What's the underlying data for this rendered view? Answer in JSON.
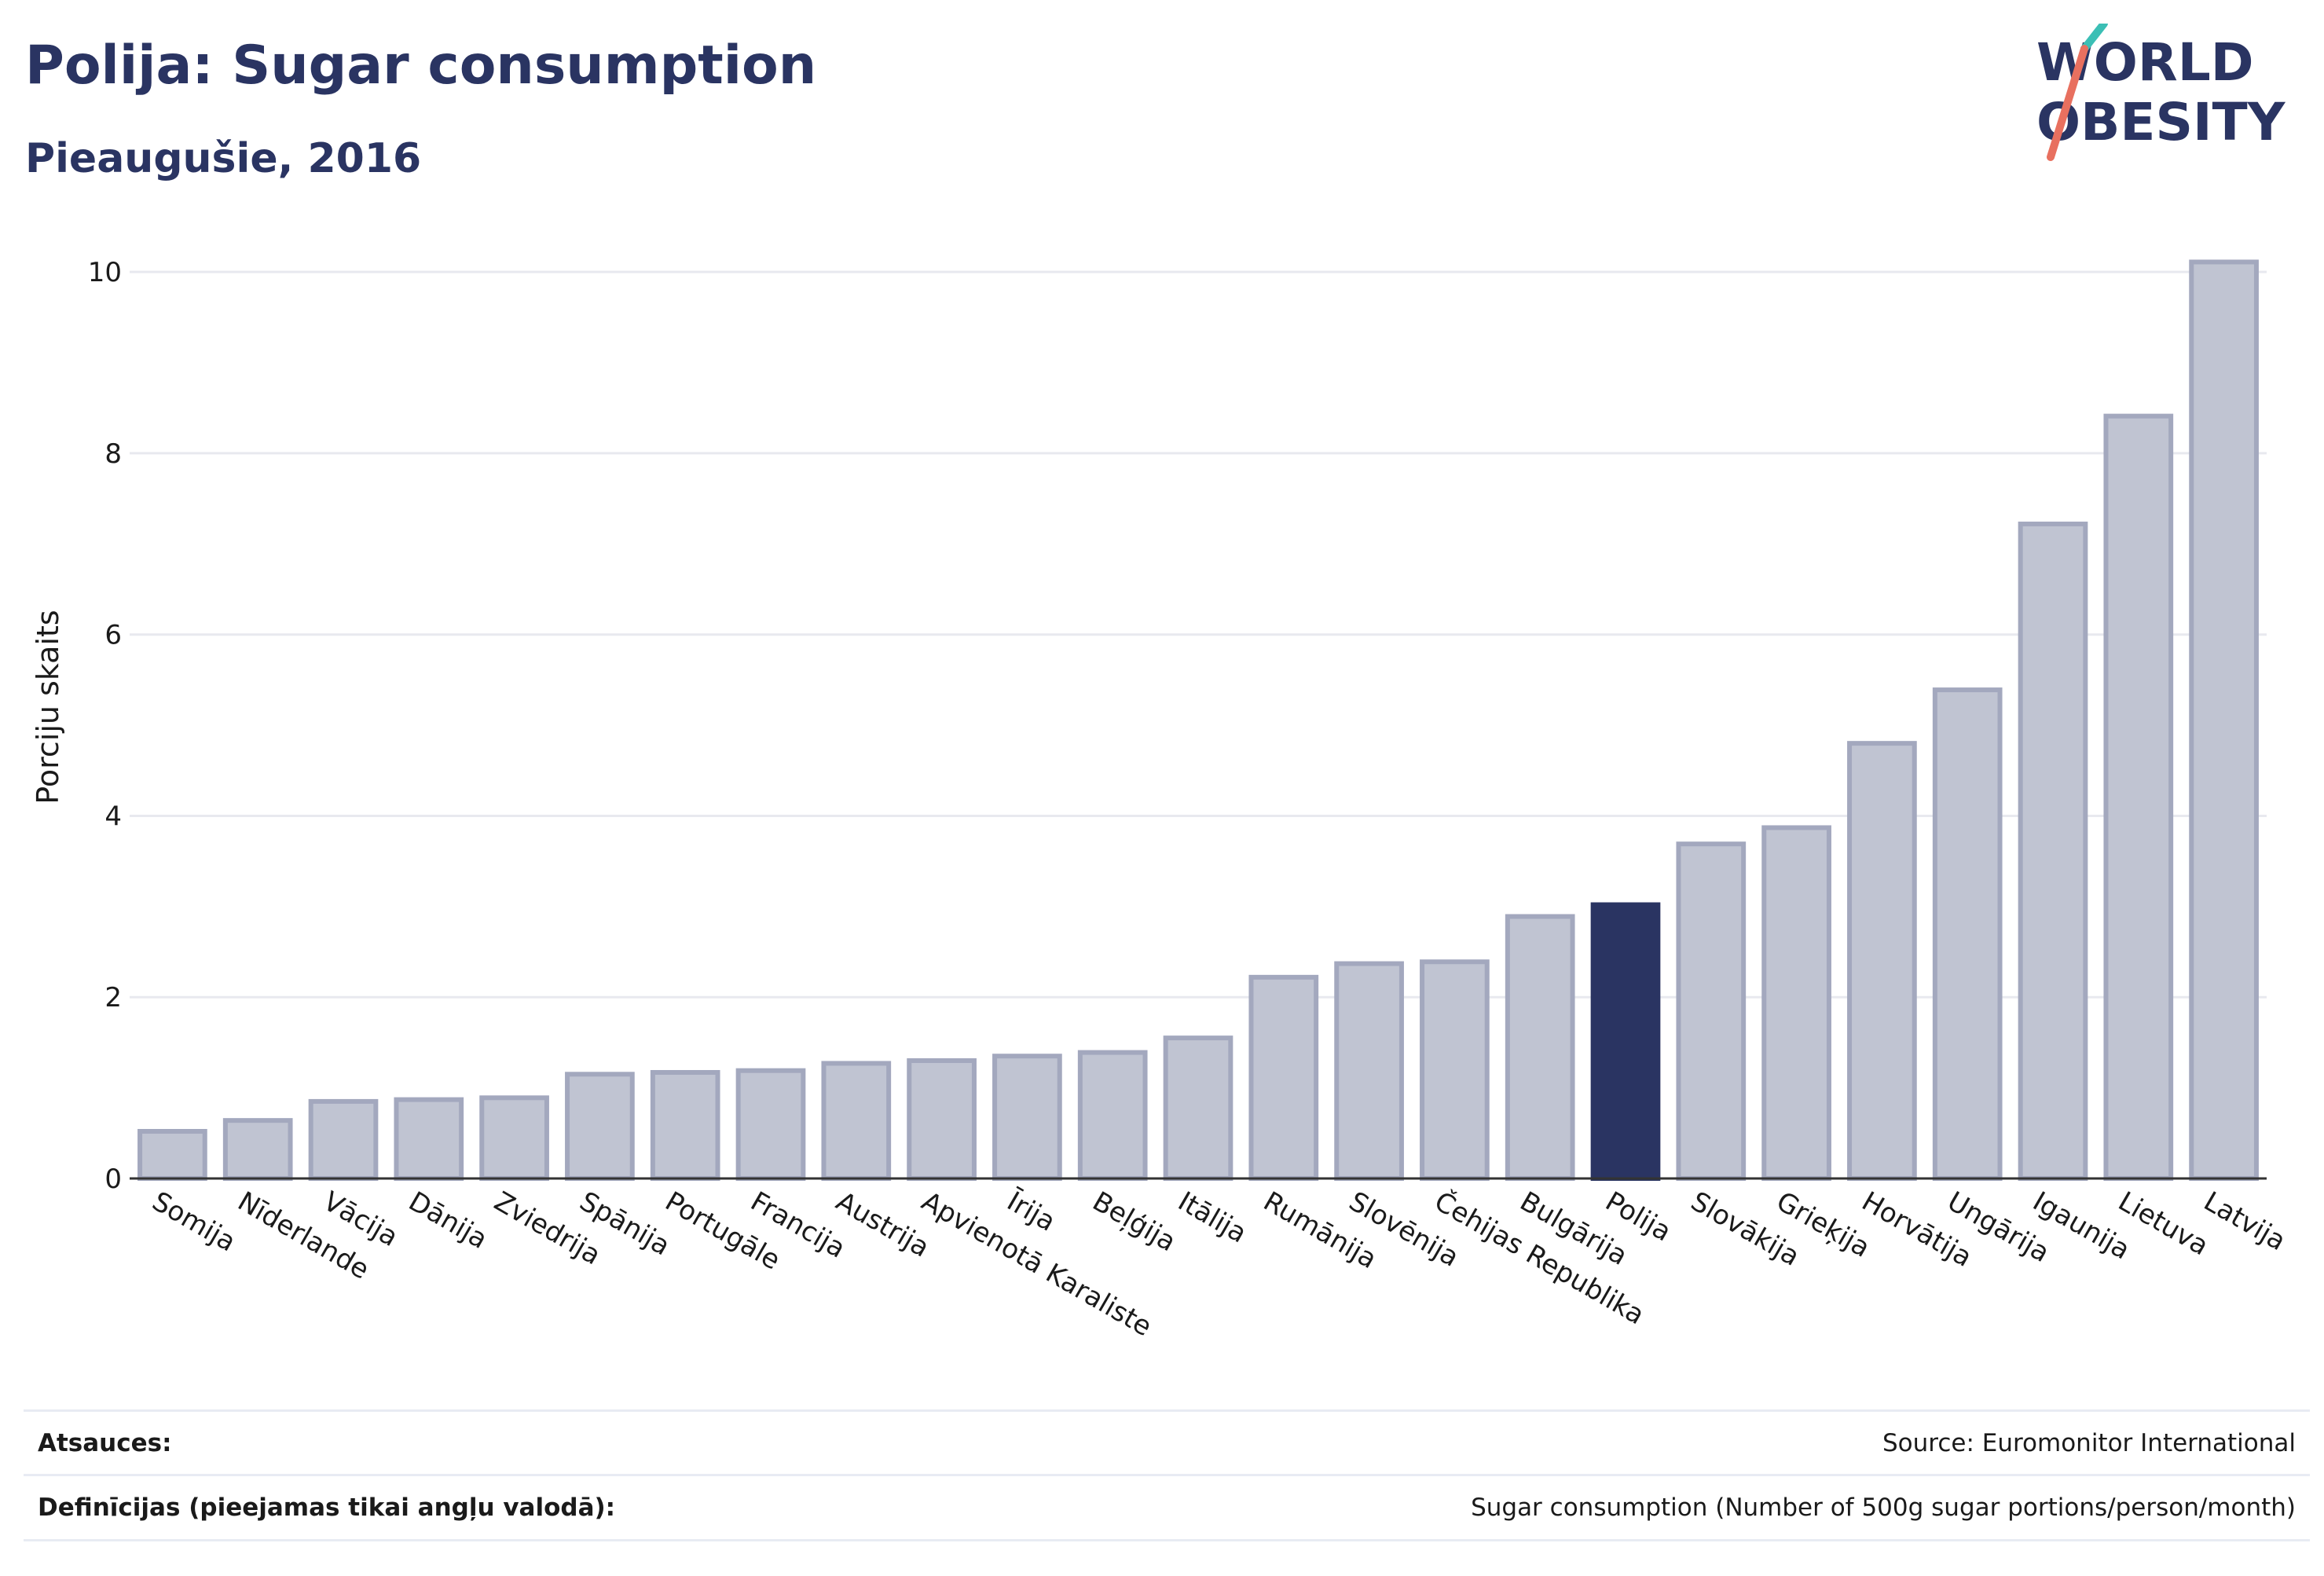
{
  "header": {
    "title": "Polija: Sugar consumption",
    "subtitle": "Pieaugušie, 2016"
  },
  "logo": {
    "line1": "WORLD",
    "line2": "OBESITY",
    "accent_teal": "#3bbfb5",
    "accent_red": "#e8705f"
  },
  "colors": {
    "bar": "#c0c4d2",
    "bar_border": "#a3a8be",
    "highlight": "#2a3462",
    "grid": "#e8e9ef",
    "axis": "#333333"
  },
  "chart_data": {
    "type": "bar",
    "ylabel": "Porciju skaits",
    "ylim": [
      0,
      10.4
    ],
    "yticks": [
      0,
      2,
      4,
      6,
      8,
      10
    ],
    "grid": true,
    "highlight": "Polija",
    "categories": [
      "Somija",
      "Nīderlande",
      "Vācija",
      "Dānija",
      "Zviedrija",
      "Spānija",
      "Portugāle",
      "Francija",
      "Austrija",
      "Apvienotā Karaliste",
      "Īrija",
      "Beļģija",
      "Itālija",
      "Rumānija",
      "Slovēnija",
      "Čehijas Republika",
      "Bulgārija",
      "Polija",
      "Slovākija",
      "Grieķija",
      "Horvātija",
      "Ungārija",
      "Igaunija",
      "Lietuva",
      "Latvija"
    ],
    "values": [
      0.52,
      0.64,
      0.85,
      0.87,
      0.89,
      1.15,
      1.17,
      1.19,
      1.27,
      1.3,
      1.35,
      1.39,
      1.55,
      2.22,
      2.37,
      2.39,
      2.89,
      3.02,
      3.69,
      3.87,
      4.8,
      5.39,
      7.22,
      8.41,
      10.11
    ]
  },
  "footer": {
    "sources_label": "Atsauces:",
    "sources_value": "Source: Euromonitor International",
    "definitions_label": "Definīcijas (pieejamas tikai angļu valodā):",
    "definitions_value": "Sugar consumption (Number of 500g sugar portions/person/month)"
  }
}
